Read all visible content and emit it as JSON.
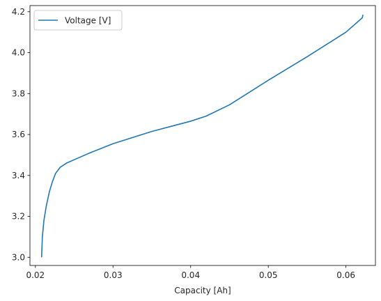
{
  "chart_data": {
    "type": "line",
    "title": "",
    "xlabel": "Capacity [Ah]",
    "ylabel": "",
    "xlim": [
      0.0193,
      0.0638
    ],
    "ylim": [
      2.96,
      4.23
    ],
    "x_ticks": [
      0.02,
      0.03,
      0.04,
      0.05,
      0.06
    ],
    "x_tick_labels": [
      "0.02",
      "0.03",
      "0.04",
      "0.05",
      "0.06"
    ],
    "y_ticks": [
      3.0,
      3.2,
      3.4,
      3.6,
      3.8,
      4.0,
      4.2
    ],
    "y_tick_labels": [
      "3.0",
      "3.2",
      "3.4",
      "3.6",
      "3.8",
      "4.0",
      "4.2"
    ],
    "grid": false,
    "legend_position": "top-left",
    "series": [
      {
        "name": "Voltage [V]",
        "color": "#1f77b4",
        "x": [
          0.0208,
          0.0209,
          0.0211,
          0.0214,
          0.0218,
          0.0222,
          0.0226,
          0.0232,
          0.024,
          0.0255,
          0.027,
          0.03,
          0.035,
          0.04,
          0.042,
          0.045,
          0.05,
          0.055,
          0.06,
          0.0615,
          0.0621,
          0.0622
        ],
        "values": [
          3.0,
          3.1,
          3.18,
          3.25,
          3.32,
          3.37,
          3.41,
          3.44,
          3.46,
          3.485,
          3.51,
          3.555,
          3.615,
          3.665,
          3.69,
          3.745,
          3.865,
          3.98,
          4.1,
          4.15,
          4.17,
          4.185
        ]
      }
    ]
  }
}
